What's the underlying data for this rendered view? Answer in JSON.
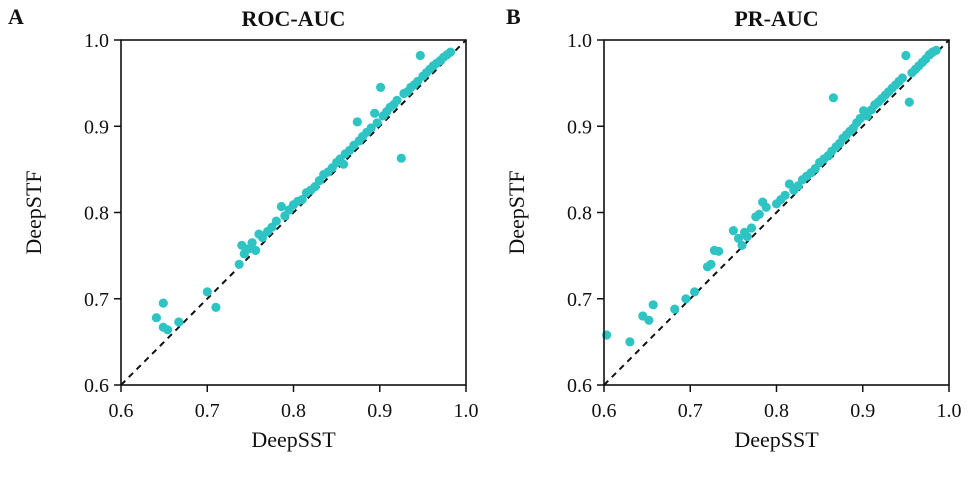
{
  "chart_data": [
    {
      "panel": "A",
      "type": "scatter",
      "title": "ROC-AUC",
      "xlabel": "DeepSST",
      "ylabel": "DeepSTF",
      "xlim": [
        0.6,
        1.0
      ],
      "ylim": [
        0.6,
        1.0
      ],
      "xticks": [
        "0.6",
        "0.7",
        "0.8",
        "0.9",
        "1.0"
      ],
      "yticks": [
        "0.6",
        "0.7",
        "0.8",
        "0.9",
        "1.0"
      ],
      "grid": false,
      "diagonal": "dashed y=x",
      "point_color": "#2ec4c4",
      "points": [
        [
          0.641,
          0.678
        ],
        [
          0.649,
          0.695
        ],
        [
          0.649,
          0.667
        ],
        [
          0.654,
          0.664
        ],
        [
          0.667,
          0.673
        ],
        [
          0.7,
          0.708
        ],
        [
          0.71,
          0.69
        ],
        [
          0.737,
          0.74
        ],
        [
          0.74,
          0.762
        ],
        [
          0.743,
          0.752
        ],
        [
          0.748,
          0.758
        ],
        [
          0.752,
          0.765
        ],
        [
          0.756,
          0.756
        ],
        [
          0.76,
          0.775
        ],
        [
          0.764,
          0.771
        ],
        [
          0.77,
          0.778
        ],
        [
          0.775,
          0.783
        ],
        [
          0.78,
          0.79
        ],
        [
          0.786,
          0.807
        ],
        [
          0.79,
          0.796
        ],
        [
          0.795,
          0.803
        ],
        [
          0.8,
          0.809
        ],
        [
          0.805,
          0.813
        ],
        [
          0.81,
          0.815
        ],
        [
          0.815,
          0.823
        ],
        [
          0.82,
          0.826
        ],
        [
          0.825,
          0.83
        ],
        [
          0.83,
          0.837
        ],
        [
          0.835,
          0.844
        ],
        [
          0.84,
          0.847
        ],
        [
          0.845,
          0.852
        ],
        [
          0.85,
          0.858
        ],
        [
          0.854,
          0.862
        ],
        [
          0.858,
          0.856
        ],
        [
          0.86,
          0.868
        ],
        [
          0.865,
          0.872
        ],
        [
          0.87,
          0.878
        ],
        [
          0.874,
          0.905
        ],
        [
          0.876,
          0.883
        ],
        [
          0.88,
          0.888
        ],
        [
          0.885,
          0.893
        ],
        [
          0.89,
          0.898
        ],
        [
          0.894,
          0.915
        ],
        [
          0.897,
          0.904
        ],
        [
          0.901,
          0.945
        ],
        [
          0.904,
          0.912
        ],
        [
          0.908,
          0.917
        ],
        [
          0.912,
          0.922
        ],
        [
          0.916,
          0.925
        ],
        [
          0.92,
          0.93
        ],
        [
          0.925,
          0.863
        ],
        [
          0.928,
          0.938
        ],
        [
          0.932,
          0.94
        ],
        [
          0.936,
          0.945
        ],
        [
          0.94,
          0.948
        ],
        [
          0.944,
          0.952
        ],
        [
          0.947,
          0.982
        ],
        [
          0.95,
          0.958
        ],
        [
          0.954,
          0.962
        ],
        [
          0.958,
          0.966
        ],
        [
          0.962,
          0.97
        ],
        [
          0.966,
          0.973
        ],
        [
          0.97,
          0.976
        ],
        [
          0.974,
          0.98
        ],
        [
          0.978,
          0.983
        ],
        [
          0.982,
          0.986
        ]
      ]
    },
    {
      "panel": "B",
      "type": "scatter",
      "title": "PR-AUC",
      "xlabel": "DeepSST",
      "ylabel": "DeepSTF",
      "xlim": [
        0.6,
        1.0
      ],
      "ylim": [
        0.6,
        1.0
      ],
      "xticks": [
        "0.6",
        "0.7",
        "0.8",
        "0.9",
        "1.0"
      ],
      "yticks": [
        "0.6",
        "0.7",
        "0.8",
        "0.9",
        "1.0"
      ],
      "grid": false,
      "diagonal": "dashed y=x",
      "point_color": "#2ec4c4",
      "points": [
        [
          0.603,
          0.658
        ],
        [
          0.63,
          0.65
        ],
        [
          0.645,
          0.68
        ],
        [
          0.652,
          0.675
        ],
        [
          0.657,
          0.693
        ],
        [
          0.682,
          0.688
        ],
        [
          0.695,
          0.7
        ],
        [
          0.705,
          0.708
        ],
        [
          0.72,
          0.737
        ],
        [
          0.724,
          0.74
        ],
        [
          0.728,
          0.756
        ],
        [
          0.733,
          0.755
        ],
        [
          0.75,
          0.779
        ],
        [
          0.756,
          0.77
        ],
        [
          0.76,
          0.762
        ],
        [
          0.763,
          0.777
        ],
        [
          0.766,
          0.772
        ],
        [
          0.771,
          0.782
        ],
        [
          0.776,
          0.795
        ],
        [
          0.78,
          0.798
        ],
        [
          0.784,
          0.812
        ],
        [
          0.788,
          0.806
        ],
        [
          0.8,
          0.81
        ],
        [
          0.805,
          0.815
        ],
        [
          0.81,
          0.82
        ],
        [
          0.815,
          0.833
        ],
        [
          0.82,
          0.826
        ],
        [
          0.825,
          0.831
        ],
        [
          0.83,
          0.838
        ],
        [
          0.835,
          0.842
        ],
        [
          0.84,
          0.846
        ],
        [
          0.845,
          0.851
        ],
        [
          0.85,
          0.858
        ],
        [
          0.855,
          0.862
        ],
        [
          0.86,
          0.866
        ],
        [
          0.864,
          0.871
        ],
        [
          0.866,
          0.933
        ],
        [
          0.869,
          0.876
        ],
        [
          0.873,
          0.88
        ],
        [
          0.877,
          0.886
        ],
        [
          0.881,
          0.89
        ],
        [
          0.885,
          0.894
        ],
        [
          0.889,
          0.898
        ],
        [
          0.893,
          0.904
        ],
        [
          0.897,
          0.909
        ],
        [
          0.901,
          0.918
        ],
        [
          0.905,
          0.912
        ],
        [
          0.91,
          0.919
        ],
        [
          0.914,
          0.925
        ],
        [
          0.918,
          0.928
        ],
        [
          0.922,
          0.932
        ],
        [
          0.926,
          0.936
        ],
        [
          0.93,
          0.94
        ],
        [
          0.934,
          0.944
        ],
        [
          0.938,
          0.948
        ],
        [
          0.942,
          0.952
        ],
        [
          0.946,
          0.956
        ],
        [
          0.95,
          0.982
        ],
        [
          0.954,
          0.928
        ],
        [
          0.957,
          0.962
        ],
        [
          0.961,
          0.966
        ],
        [
          0.965,
          0.97
        ],
        [
          0.969,
          0.974
        ],
        [
          0.973,
          0.978
        ],
        [
          0.977,
          0.983
        ],
        [
          0.981,
          0.986
        ],
        [
          0.985,
          0.988
        ]
      ]
    }
  ]
}
